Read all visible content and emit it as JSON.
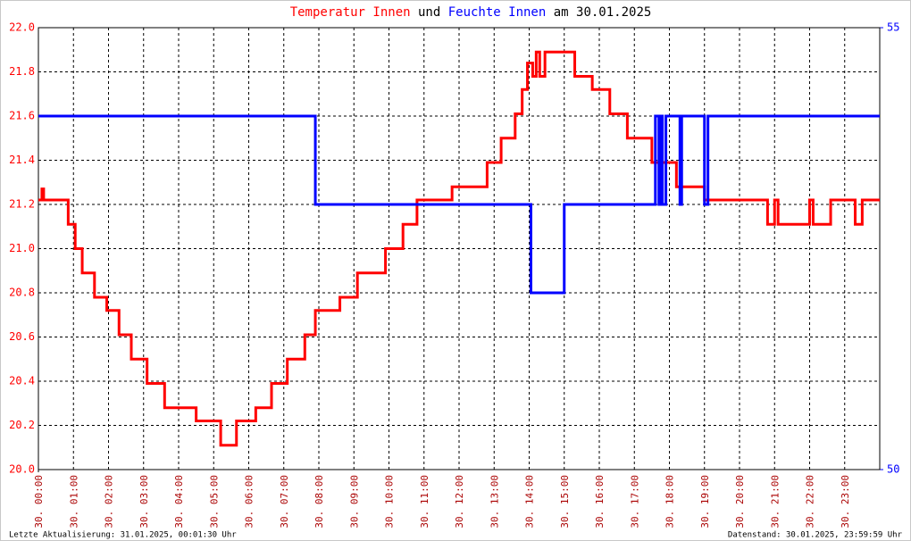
{
  "chart_data": {
    "type": "line",
    "title_words": [
      "und",
      "am 30.01.2025"
    ],
    "footer_left": "Letzte Aktualisierung: 31.01.2025, 00:01:30 Uhr",
    "footer_right": "Datenstand: 30.01.2025, 23:59:59 Uhr",
    "xlim": [
      0,
      24
    ],
    "xticks": [
      {
        "value": 0,
        "label": "30. 00:00"
      },
      {
        "value": 1,
        "label": "30. 01:00"
      },
      {
        "value": 2,
        "label": "30. 02:00"
      },
      {
        "value": 3,
        "label": "30. 03:00"
      },
      {
        "value": 4,
        "label": "30. 04:00"
      },
      {
        "value": 5,
        "label": "30. 05:00"
      },
      {
        "value": 6,
        "label": "30. 06:00"
      },
      {
        "value": 7,
        "label": "30. 07:00"
      },
      {
        "value": 8,
        "label": "30. 08:00"
      },
      {
        "value": 9,
        "label": "30. 09:00"
      },
      {
        "value": 10,
        "label": "30. 10:00"
      },
      {
        "value": 11,
        "label": "30. 11:00"
      },
      {
        "value": 12,
        "label": "30. 12:00"
      },
      {
        "value": 13,
        "label": "30. 13:00"
      },
      {
        "value": 14,
        "label": "30. 14:00"
      },
      {
        "value": 15,
        "label": "30. 15:00"
      },
      {
        "value": 16,
        "label": "30. 16:00"
      },
      {
        "value": 17,
        "label": "30. 17:00"
      },
      {
        "value": 18,
        "label": "30. 18:00"
      },
      {
        "value": 19,
        "label": "30. 19:00"
      },
      {
        "value": 20,
        "label": "30. 20:00"
      },
      {
        "value": 21,
        "label": "30. 21:00"
      },
      {
        "value": 22,
        "label": "30. 22:00"
      },
      {
        "value": 23,
        "label": "30. 23:00"
      }
    ],
    "ylim": [
      20,
      22
    ],
    "yticks": [
      {
        "value": 20,
        "label": "20.0"
      },
      20.2,
      20.4,
      20.6,
      20.8,
      {
        "value": 21,
        "label": "21.0"
      },
      21.2,
      21.4,
      21.6,
      21.8,
      {
        "value": 22,
        "label": "22.0"
      }
    ],
    "y2lim": [
      50,
      55
    ],
    "y2ticks": [
      50,
      55
    ],
    "grid": true,
    "series": [
      {
        "name": "Temperatur Innen",
        "color": "#ff0000",
        "x": [
          0,
          0.1,
          0.1,
          0.15,
          0.15,
          0.85,
          0.85,
          1.05,
          1.05,
          1.25,
          1.25,
          1.6,
          1.6,
          1.95,
          1.95,
          2.3,
          2.3,
          2.65,
          2.65,
          3.1,
          3.1,
          3.6,
          3.6,
          4.5,
          4.5,
          5.2,
          5.2,
          5.65,
          5.65,
          6.2,
          6.2,
          6.65,
          6.65,
          7.1,
          7.1,
          7.6,
          7.6,
          7.9,
          7.9,
          8.6,
          8.6,
          9.1,
          9.1,
          9.9,
          9.9,
          10.4,
          10.4,
          10.8,
          10.8,
          11.8,
          11.8,
          12.8,
          12.8,
          13.2,
          13.2,
          13.6,
          13.6,
          13.8,
          13.8,
          13.95,
          13.95,
          14.1,
          14.1,
          14.2,
          14.2,
          14.3,
          14.3,
          14.45,
          14.45,
          15.3,
          15.3,
          15.8,
          15.8,
          16.3,
          16.3,
          16.8,
          16.8,
          17.5,
          17.5,
          18.2,
          18.2,
          19.0,
          19.0,
          20.8,
          20.8,
          21.0,
          21.0,
          21.1,
          21.1,
          22.0,
          22.0,
          22.1,
          22.1,
          22.6,
          22.6,
          23.3,
          23.3,
          23.5,
          23.5,
          24
        ],
        "values": [
          21.22,
          21.22,
          21.27,
          21.27,
          21.22,
          21.22,
          21.11,
          21.11,
          21.0,
          21.0,
          20.89,
          20.89,
          20.78,
          20.78,
          20.72,
          20.72,
          20.61,
          20.61,
          20.5,
          20.5,
          20.39,
          20.39,
          20.28,
          20.28,
          20.22,
          20.22,
          20.11,
          20.11,
          20.22,
          20.22,
          20.28,
          20.28,
          20.39,
          20.39,
          20.5,
          20.5,
          20.61,
          20.61,
          20.72,
          20.72,
          20.78,
          20.78,
          20.89,
          20.89,
          21.0,
          21.0,
          21.11,
          21.11,
          21.22,
          21.22,
          21.28,
          21.28,
          21.39,
          21.39,
          21.5,
          21.5,
          21.61,
          21.61,
          21.72,
          21.72,
          21.84,
          21.84,
          21.78,
          21.78,
          21.89,
          21.89,
          21.78,
          21.78,
          21.89,
          21.89,
          21.78,
          21.78,
          21.72,
          21.72,
          21.61,
          21.61,
          21.5,
          21.5,
          21.39,
          21.39,
          21.28,
          21.28,
          21.22,
          21.22,
          21.11,
          21.11,
          21.22,
          21.22,
          21.11,
          21.11,
          21.22,
          21.22,
          21.11,
          21.11,
          21.22,
          21.22,
          21.11,
          21.11,
          21.22,
          21.22
        ]
      },
      {
        "name": "Feuchte Innen",
        "color": "#0000ff",
        "axis": "y2",
        "x": [
          0,
          7.9,
          7.9,
          14.05,
          14.05,
          15.0,
          15.0,
          17.6,
          17.6,
          17.7,
          17.7,
          17.75,
          17.75,
          17.8,
          17.8,
          17.9,
          17.9,
          18.3,
          18.3,
          18.35,
          18.35,
          19.0,
          19.0,
          19.1,
          19.1,
          24
        ],
        "values": [
          54,
          54,
          53,
          53,
          52,
          52,
          53,
          53,
          54,
          54,
          53,
          53,
          54,
          54,
          53,
          53,
          54,
          54,
          53,
          53,
          54,
          54,
          53,
          53,
          54,
          54
        ]
      }
    ]
  }
}
